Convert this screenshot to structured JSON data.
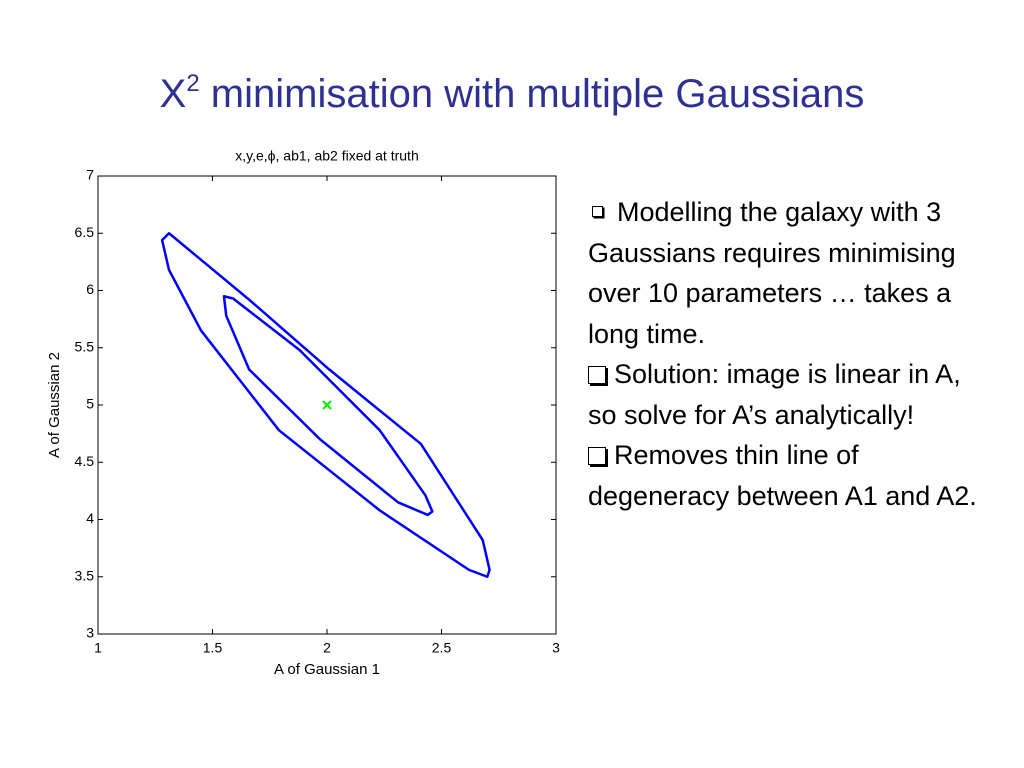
{
  "slide": {
    "title": {
      "base": "X",
      "sup": "2",
      "rest": " minimisation with multiple Gaussians"
    },
    "bullets": [
      "Modelling the galaxy with 3 Gaussians requires minimising over 10 parameters … takes a long time.",
      "Solution: image is linear in A, so solve for A’s analytically!",
      "Removes thin line of degeneracy between A1 and A2."
    ]
  },
  "chart_data": {
    "type": "contour",
    "title": "x,y,e,ϕ, ab1, ab2 fixed at truth",
    "xlabel": "A of Gaussian 1",
    "ylabel": "A of Gaussian 2",
    "xlim": [
      1,
      3
    ],
    "ylim": [
      3,
      7
    ],
    "xticks": [
      1,
      1.5,
      2,
      2.5,
      3
    ],
    "yticks": [
      3,
      3.5,
      4,
      4.5,
      5,
      5.5,
      6,
      6.5,
      7
    ],
    "series": [
      {
        "color": "#0000ff",
        "closed": true,
        "x": [
          1.31,
          1.66,
          2.01,
          2.41,
          2.68,
          2.71,
          2.7,
          2.62,
          2.23,
          1.79,
          1.45,
          1.31,
          1.28
        ],
        "y": [
          6.5,
          5.92,
          5.31,
          4.66,
          3.82,
          3.56,
          3.5,
          3.56,
          4.08,
          4.78,
          5.65,
          6.18,
          6.44
        ]
      },
      {
        "color": "#0000ff",
        "closed": true,
        "x": [
          1.55,
          1.59,
          1.88,
          2.23,
          2.43,
          2.46,
          2.44,
          2.31,
          1.97,
          1.66,
          1.56
        ],
        "y": [
          5.95,
          5.93,
          5.48,
          4.78,
          4.21,
          4.07,
          4.04,
          4.15,
          4.7,
          5.31,
          5.78
        ]
      },
      {
        "color": "#00ee00",
        "marker": "x",
        "x": [
          2
        ],
        "y": [
          5
        ]
      }
    ]
  }
}
